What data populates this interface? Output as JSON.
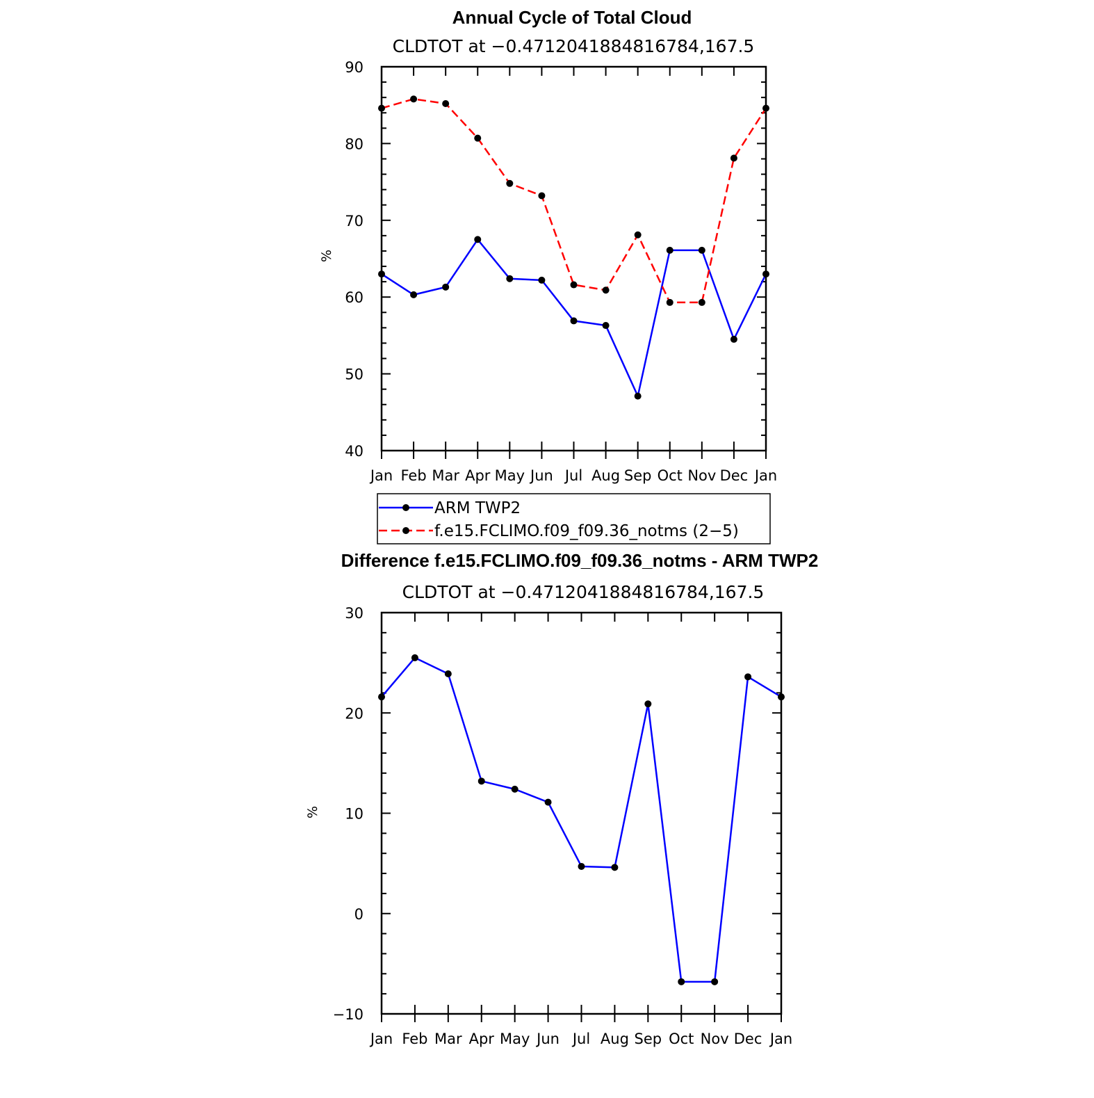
{
  "chart_data": [
    {
      "type": "line",
      "title": "Annual Cycle of Total Cloud",
      "subtitle": "CLDTOT at −0.4712041884816784,167.5",
      "ylabel": "%",
      "xlabel": "",
      "ylim": [
        40,
        90
      ],
      "yticks": [
        "40",
        "50",
        "60",
        "70",
        "80",
        "90"
      ],
      "categories": [
        "Jan",
        "Feb",
        "Mar",
        "Apr",
        "May",
        "Jun",
        "Jul",
        "Aug",
        "Sep",
        "Oct",
        "Nov",
        "Dec",
        "Jan"
      ],
      "series": [
        {
          "name": "ARM TWP2",
          "color": "#0000ff",
          "dash": "solid",
          "values": [
            63.0,
            60.3,
            61.3,
            67.5,
            62.4,
            62.2,
            56.9,
            56.3,
            47.1,
            66.1,
            66.1,
            54.5,
            63.0
          ]
        },
        {
          "name": "f.e15.FCLIMO.f09_f09.36_notms (2−5)",
          "color": "#ff0000",
          "dash": "dashed",
          "values": [
            84.6,
            85.8,
            85.2,
            80.7,
            74.8,
            73.2,
            61.6,
            60.9,
            68.1,
            59.3,
            59.3,
            78.1,
            84.6
          ]
        }
      ],
      "legend": "below"
    },
    {
      "type": "line",
      "title": "Difference f.e15.FCLIMO.f09_f09.36_notms - ARM TWP2",
      "subtitle": "CLDTOT at −0.4712041884816784,167.5",
      "ylabel": "%",
      "xlabel": "",
      "ylim": [
        -10,
        30
      ],
      "yticks": [
        "−10",
        "0",
        "10",
        "20",
        "30"
      ],
      "categories": [
        "Jan",
        "Feb",
        "Mar",
        "Apr",
        "May",
        "Jun",
        "Jul",
        "Aug",
        "Sep",
        "Oct",
        "Nov",
        "Dec",
        "Jan"
      ],
      "series": [
        {
          "color": "#0000ff",
          "dash": "solid",
          "values": [
            21.6,
            25.5,
            23.9,
            13.2,
            12.4,
            11.1,
            4.7,
            4.6,
            20.9,
            -6.8,
            -6.8,
            23.6,
            21.6
          ]
        }
      ]
    }
  ]
}
